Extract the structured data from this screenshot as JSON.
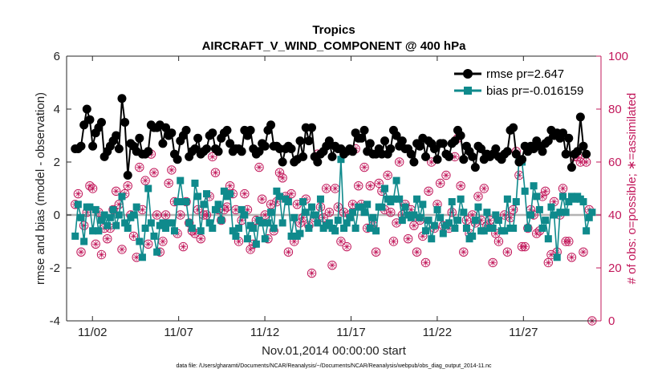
{
  "chart_data": {
    "type": "line",
    "title": "Tropics",
    "subtitle": "AIRCRAFT_V_WIND_COMPONENT @ 400 hPa",
    "xlabel": "Nov.01,2014 00:00:00 start",
    "ylabel_left": "rmse and bias (model - observation)",
    "ylabel_right": "# of obs: o=possible; ∗=assimilated",
    "ylim_left": [
      -4,
      6
    ],
    "ylim_right": [
      0,
      100
    ],
    "xlim": [
      0.5,
      31.5
    ],
    "x_ticks": [
      2,
      7,
      12,
      17,
      22,
      27
    ],
    "x_tick_labels": [
      "11/02",
      "11/07",
      "11/12",
      "11/17",
      "11/22",
      "11/27"
    ],
    "y_ticks_left": [
      -4,
      -2,
      0,
      2,
      4,
      6
    ],
    "y_tick_labels_left": [
      "-4",
      "-2",
      "0",
      "2",
      "4",
      "6"
    ],
    "y_ticks_right": [
      0,
      20,
      40,
      60,
      80,
      100
    ],
    "y_tick_labels_right": [
      "0",
      "20",
      "40",
      "60",
      "80",
      "100"
    ],
    "zero_line": 0,
    "legend_position": "top-right",
    "colors": {
      "rmse": "#000000",
      "bias": "#0f8a8c",
      "obs": "#c2185b",
      "zero": "#b3b3b3"
    },
    "series": [
      {
        "name": "rmse pr=2.647",
        "axis": "left",
        "marker": "circle",
        "values": [
          2.5,
          2.5,
          2.6,
          3.4,
          4.0,
          3.6,
          2.6,
          3.1,
          3.3,
          3.5,
          2.2,
          2.4,
          2.6,
          2.8,
          3.0,
          2.5,
          4.4,
          3.5,
          1.5,
          2.7,
          2.6,
          2.4,
          2.9,
          2.3,
          2.3,
          2.4,
          3.4,
          3.3,
          3.3,
          3.4,
          2.7,
          3.3,
          3.0,
          3.1,
          2.3,
          2.1,
          2.8,
          3.0,
          3.2,
          2.2,
          2.4,
          2.5,
          2.9,
          2.3,
          2.4,
          2.5,
          3.0,
          3.1,
          2.5,
          2.4,
          2.9,
          3.1,
          3.2,
          2.7,
          2.4,
          2.5,
          2.5,
          2.4,
          3.2,
          3.0,
          3.2,
          2.5,
          2.3,
          2.4,
          2.7,
          2.6,
          3.2,
          3.4,
          2.6,
          2.6,
          2.5,
          2.0,
          2.5,
          2.6,
          2.5,
          2.0,
          2.1,
          2.8,
          2.2,
          3.3,
          2.8,
          3.3,
          2.2,
          2.0,
          2.3,
          2.4,
          2.6,
          2.8,
          2.2,
          2.6,
          2.5,
          2.5,
          2.3,
          2.4,
          2.5,
          2.4,
          3.1,
          2.9,
          2.9,
          3.2,
          2.4,
          2.7,
          2.3,
          2.3,
          2.5,
          2.3,
          2.8,
          2.3,
          2.5,
          3.2,
          3.0,
          2.6,
          2.8,
          2.5,
          2.5,
          2.3,
          2.0,
          2.7,
          2.6,
          2.9,
          2.2,
          2.8,
          2.7,
          2.5,
          2.1,
          2.7,
          2.7,
          2.3,
          2.2,
          2.7,
          2.8,
          3.2,
          3.0,
          2.1,
          2.6,
          2.4,
          2.2,
          1.8,
          2.6,
          2.5,
          2.1,
          2.3,
          2.2,
          2.3,
          2.5,
          2.2,
          2.1,
          2.3,
          2.4,
          3.2,
          3.3,
          2.3,
          2.0,
          2.1,
          2.6,
          2.4,
          2.6,
          2.5,
          2.8,
          2.6,
          2.4,
          2.7,
          2.8,
          3.2,
          3.0,
          3.1,
          2.9,
          3.1,
          2.3,
          2.9,
          1.8,
          2.3,
          2.4,
          3.7,
          2.6,
          2.3
        ],
        "x_start": 1.0,
        "x_step": 0.1694
      },
      {
        "name": "bias pr=-0.016159",
        "axis": "left",
        "marker": "square",
        "values": [
          -0.8,
          0.4,
          -0.1,
          -1.0,
          0.3,
          0.3,
          -0.6,
          0.2,
          -0.6,
          -0.2,
          0.0,
          -0.4,
          -0.1,
          0.2,
          -0.4,
          0.0,
          0.7,
          -0.3,
          -0.5,
          -0.1,
          0.0,
          0.3,
          -1.0,
          -1.6,
          -0.5,
          1.0,
          -0.3,
          -0.8,
          -1.4,
          -0.4,
          -0.3,
          -0.5,
          -0.3,
          -0.3,
          -0.6,
          0.5,
          1.3,
          0.5,
          0.5,
          -0.3,
          -0.5,
          1.2,
          0.7,
          -0.6,
          0.4,
          0.8,
          -0.3,
          -0.5,
          0.2,
          0.4,
          -0.2,
          0.9,
          0.7,
          0.8,
          -0.6,
          -0.8,
          -0.5,
          0.2,
          0.0,
          -0.9,
          -0.4,
          -0.5,
          -1.1,
          -0.2,
          -0.3,
          -0.9,
          -0.3,
          0.1,
          -0.5,
          0.9,
          0.7,
          -0.3,
          0.6,
          0.5,
          -0.8,
          -0.1,
          -0.8,
          -0.7,
          0.5,
          0.1,
          -0.5,
          0.3,
          0.0,
          -0.3,
          0.6,
          -0.5,
          -0.4,
          -0.3,
          -0.5,
          -0.6,
          -0.2,
          2.1,
          -0.5,
          -0.3,
          -0.1,
          0.1,
          -0.5,
          0.3,
          0.3,
          0.1,
          0.4,
          -0.5,
          -0.1,
          -0.6,
          0.3,
          0.3,
          1.0,
          0.6,
          0.5,
          0.6,
          1.3,
          0.6,
          -0.2,
          0.3,
          0.0,
          -0.1,
          0.0,
          0.6,
          -0.1,
          0.4,
          -0.6,
          -0.2,
          -0.9,
          -0.4,
          0.2,
          -0.1,
          -0.7,
          -0.4,
          -0.3,
          0.5,
          -0.5,
          -0.2,
          0.6,
          0.1,
          -0.5,
          -0.9,
          -0.8,
          -0.2,
          0.3,
          -0.6,
          -0.6,
          0.1,
          -0.5,
          -0.5,
          0.0,
          -0.2,
          -0.6,
          -0.6,
          0.6,
          -0.5,
          -0.5,
          0.5,
          2.1,
          2.0,
          0.9,
          -0.5,
          0.0,
          1.1,
          0.7,
          0.2,
          -0.5,
          -0.2,
          -0.9,
          0.3,
          0.0,
          -1.6,
          0.1,
          0.7,
          0.1,
          0.5,
          0.7,
          0.6,
          0.7,
          0.6,
          0.5,
          -0.6,
          -0.1,
          0.1
        ],
        "x_start": 1.0,
        "x_step": 0.1694
      },
      {
        "name": "# of obs",
        "axis": "right",
        "marker": "circle-asterisk",
        "values": [
          44,
          48,
          26,
          36,
          41,
          51,
          50,
          29,
          41,
          25,
          35,
          31,
          35,
          42,
          49,
          44,
          27,
          48,
          51,
          40,
          32,
          24,
          58,
          42,
          53,
          29,
          63,
          56,
          40,
          26,
          30,
          40,
          52,
          57,
          45,
          33,
          40,
          28,
          45,
          37,
          34,
          33,
          42,
          31,
          40,
          40,
          47,
          62,
          56,
          42,
          38,
          42,
          43,
          51,
          48,
          42,
          30,
          38,
          48,
          42,
          27,
          29,
          38,
          58,
          46,
          40,
          31,
          44,
          34,
          45,
          56,
          54,
          47,
          26,
          48,
          30,
          44,
          37,
          39,
          46,
          36,
          18,
          39,
          63,
          43,
          39,
          50,
          41,
          21,
          50,
          43,
          30,
          41,
          28,
          40,
          44,
          65,
          51,
          44,
          58,
          35,
          51,
          36,
          26,
          52,
          49,
          42,
          55,
          41,
          30,
          37,
          60,
          40,
          44,
          31,
          42,
          36,
          26,
          38,
          32,
          22,
          49,
          60,
          35,
          44,
          52,
          36,
          55,
          35,
          41,
          62,
          69,
          51,
          26,
          38,
          33,
          40,
          37,
          47,
          38,
          50,
          36,
          38,
          22,
          33,
          30,
          62,
          40,
          26,
          39,
          42,
          64,
          55,
          28,
          28,
          35,
          42,
          40,
          33,
          34,
          47,
          49,
          22,
          25,
          45,
          26,
          40,
          50,
          30,
          30,
          24,
          62,
          62,
          60,
          26,
          60,
          42,
          0
        ],
        "x_start": 1.0,
        "x_step": 0.1694
      }
    ]
  },
  "footer": "data file: /Users/gharamti/Documents/NCAR/Reanalysis/~/Documents/NCAR/Reanalysis/webpub/obs_diag_output_2014-11.nc"
}
